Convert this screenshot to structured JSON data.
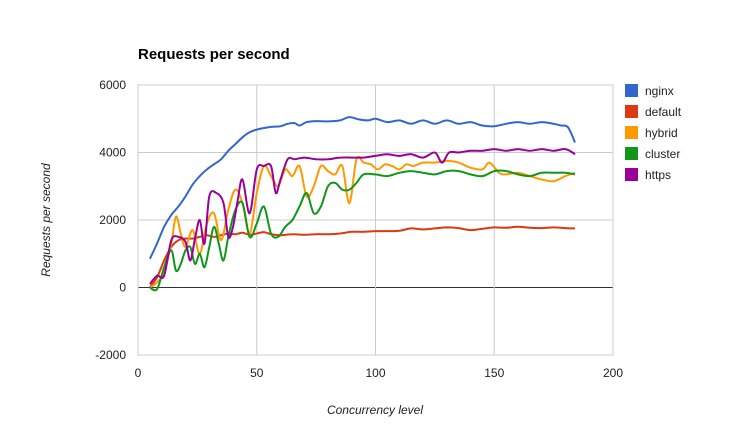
{
  "chart_data": {
    "type": "line",
    "title": "Requests per second",
    "xlabel": "Concurrency level",
    "ylabel": "Requests per second",
    "xlim": [
      0,
      200
    ],
    "ylim": [
      -2000,
      6000
    ],
    "x_ticks": [
      0,
      50,
      100,
      150,
      200
    ],
    "y_ticks": [
      -2000,
      0,
      2000,
      4000,
      6000
    ],
    "grid": true,
    "legend": "right",
    "series": [
      {
        "name": "nginx",
        "color": "#3366cc",
        "points": [
          [
            5,
            850
          ],
          [
            8,
            1300
          ],
          [
            11,
            1800
          ],
          [
            14,
            2150
          ],
          [
            17,
            2400
          ],
          [
            20,
            2700
          ],
          [
            23,
            3050
          ],
          [
            26,
            3300
          ],
          [
            29,
            3500
          ],
          [
            32,
            3650
          ],
          [
            35,
            3800
          ],
          [
            38,
            4050
          ],
          [
            41,
            4250
          ],
          [
            44,
            4450
          ],
          [
            47,
            4600
          ],
          [
            50,
            4680
          ],
          [
            55,
            4750
          ],
          [
            60,
            4780
          ],
          [
            63,
            4850
          ],
          [
            66,
            4870
          ],
          [
            68,
            4800
          ],
          [
            71,
            4900
          ],
          [
            75,
            4930
          ],
          [
            80,
            4920
          ],
          [
            85,
            4950
          ],
          [
            89,
            5050
          ],
          [
            93,
            4980
          ],
          [
            97,
            4950
          ],
          [
            100,
            5000
          ],
          [
            105,
            4900
          ],
          [
            110,
            4950
          ],
          [
            115,
            4850
          ],
          [
            120,
            4950
          ],
          [
            125,
            4850
          ],
          [
            130,
            4950
          ],
          [
            135,
            4850
          ],
          [
            140,
            4900
          ],
          [
            145,
            4800
          ],
          [
            150,
            4780
          ],
          [
            155,
            4850
          ],
          [
            160,
            4900
          ],
          [
            165,
            4850
          ],
          [
            170,
            4900
          ],
          [
            175,
            4850
          ],
          [
            178,
            4800
          ],
          [
            181,
            4750
          ],
          [
            184,
            4300
          ]
        ]
      },
      {
        "name": "default",
        "color": "#dc3912",
        "points": [
          [
            5,
            0
          ],
          [
            8,
            300
          ],
          [
            11,
            800
          ],
          [
            14,
            1200
          ],
          [
            17,
            1400
          ],
          [
            20,
            1450
          ],
          [
            23,
            1450
          ],
          [
            26,
            1500
          ],
          [
            29,
            1550
          ],
          [
            32,
            1500
          ],
          [
            35,
            1550
          ],
          [
            38,
            1600
          ],
          [
            41,
            1580
          ],
          [
            44,
            1620
          ],
          [
            47,
            1560
          ],
          [
            50,
            1600
          ],
          [
            53,
            1640
          ],
          [
            56,
            1580
          ],
          [
            60,
            1550
          ],
          [
            65,
            1580
          ],
          [
            70,
            1560
          ],
          [
            75,
            1580
          ],
          [
            80,
            1580
          ],
          [
            85,
            1600
          ],
          [
            90,
            1650
          ],
          [
            95,
            1650
          ],
          [
            100,
            1670
          ],
          [
            105,
            1670
          ],
          [
            110,
            1680
          ],
          [
            115,
            1750
          ],
          [
            120,
            1720
          ],
          [
            125,
            1750
          ],
          [
            130,
            1780
          ],
          [
            135,
            1760
          ],
          [
            140,
            1700
          ],
          [
            145,
            1740
          ],
          [
            150,
            1780
          ],
          [
            155,
            1770
          ],
          [
            160,
            1800
          ],
          [
            165,
            1770
          ],
          [
            170,
            1760
          ],
          [
            175,
            1780
          ],
          [
            180,
            1760
          ],
          [
            184,
            1750
          ]
        ]
      },
      {
        "name": "hybrid",
        "color": "#ff9900",
        "points": [
          [
            5,
            0
          ],
          [
            8,
            150
          ],
          [
            11,
            450
          ],
          [
            14,
            1300
          ],
          [
            16,
            2100
          ],
          [
            18,
            1600
          ],
          [
            20,
            1200
          ],
          [
            23,
            1700
          ],
          [
            26,
            1000
          ],
          [
            29,
            1900
          ],
          [
            32,
            2200
          ],
          [
            35,
            1400
          ],
          [
            38,
            2300
          ],
          [
            41,
            2900
          ],
          [
            44,
            2500
          ],
          [
            47,
            1600
          ],
          [
            50,
            2800
          ],
          [
            53,
            3600
          ],
          [
            56,
            3300
          ],
          [
            59,
            3000
          ],
          [
            62,
            3500
          ],
          [
            65,
            3300
          ],
          [
            68,
            3600
          ],
          [
            71,
            2700
          ],
          [
            74,
            3000
          ],
          [
            77,
            3600
          ],
          [
            80,
            3450
          ],
          [
            83,
            3350
          ],
          [
            86,
            3600
          ],
          [
            89,
            2500
          ],
          [
            92,
            3800
          ],
          [
            95,
            3700
          ],
          [
            98,
            3650
          ],
          [
            101,
            3500
          ],
          [
            104,
            3650
          ],
          [
            107,
            3600
          ],
          [
            110,
            3500
          ],
          [
            113,
            3650
          ],
          [
            116,
            3600
          ],
          [
            120,
            3700
          ],
          [
            125,
            3700
          ],
          [
            130,
            3750
          ],
          [
            135,
            3700
          ],
          [
            140,
            3550
          ],
          [
            145,
            3500
          ],
          [
            148,
            3700
          ],
          [
            152,
            3400
          ],
          [
            155,
            3350
          ],
          [
            160,
            3400
          ],
          [
            165,
            3300
          ],
          [
            170,
            3200
          ],
          [
            175,
            3150
          ],
          [
            180,
            3300
          ],
          [
            184,
            3400
          ]
        ]
      },
      {
        "name": "cluster",
        "color": "#109618",
        "points": [
          [
            5,
            0
          ],
          [
            8,
            -50
          ],
          [
            11,
            600
          ],
          [
            14,
            1100
          ],
          [
            16,
            500
          ],
          [
            18,
            700
          ],
          [
            20,
            1100
          ],
          [
            22,
            1200
          ],
          [
            24,
            700
          ],
          [
            26,
            1000
          ],
          [
            28,
            600
          ],
          [
            30,
            1200
          ],
          [
            32,
            1800
          ],
          [
            34,
            1300
          ],
          [
            36,
            800
          ],
          [
            38,
            1500
          ],
          [
            41,
            2300
          ],
          [
            44,
            2500
          ],
          [
            47,
            1500
          ],
          [
            50,
            1900
          ],
          [
            53,
            2400
          ],
          [
            56,
            1600
          ],
          [
            59,
            1500
          ],
          [
            62,
            1800
          ],
          [
            65,
            2000
          ],
          [
            68,
            2400
          ],
          [
            71,
            2800
          ],
          [
            74,
            2200
          ],
          [
            77,
            2400
          ],
          [
            80,
            3000
          ],
          [
            83,
            3100
          ],
          [
            86,
            2900
          ],
          [
            89,
            2900
          ],
          [
            92,
            3100
          ],
          [
            95,
            3350
          ],
          [
            100,
            3350
          ],
          [
            105,
            3300
          ],
          [
            110,
            3400
          ],
          [
            115,
            3450
          ],
          [
            120,
            3400
          ],
          [
            125,
            3350
          ],
          [
            130,
            3450
          ],
          [
            135,
            3450
          ],
          [
            140,
            3350
          ],
          [
            145,
            3300
          ],
          [
            150,
            3450
          ],
          [
            155,
            3450
          ],
          [
            160,
            3350
          ],
          [
            165,
            3300
          ],
          [
            170,
            3400
          ],
          [
            175,
            3400
          ],
          [
            180,
            3400
          ],
          [
            184,
            3350
          ]
        ]
      },
      {
        "name": "https",
        "color": "#990099",
        "points": [
          [
            5,
            100
          ],
          [
            8,
            350
          ],
          [
            11,
            350
          ],
          [
            14,
            1400
          ],
          [
            17,
            1500
          ],
          [
            20,
            1350
          ],
          [
            22,
            800
          ],
          [
            24,
            1450
          ],
          [
            26,
            2000
          ],
          [
            28,
            1300
          ],
          [
            30,
            2700
          ],
          [
            33,
            2800
          ],
          [
            36,
            2500
          ],
          [
            38,
            1500
          ],
          [
            40,
            1800
          ],
          [
            42,
            2600
          ],
          [
            44,
            3200
          ],
          [
            47,
            2200
          ],
          [
            50,
            3500
          ],
          [
            53,
            3600
          ],
          [
            56,
            3600
          ],
          [
            58,
            2800
          ],
          [
            60,
            3200
          ],
          [
            63,
            3800
          ],
          [
            66,
            3800
          ],
          [
            70,
            3850
          ],
          [
            75,
            3800
          ],
          [
            80,
            3800
          ],
          [
            85,
            3850
          ],
          [
            90,
            3850
          ],
          [
            95,
            3850
          ],
          [
            100,
            3900
          ],
          [
            105,
            3950
          ],
          [
            110,
            3900
          ],
          [
            115,
            3950
          ],
          [
            120,
            3850
          ],
          [
            125,
            4000
          ],
          [
            128,
            3700
          ],
          [
            131,
            4000
          ],
          [
            135,
            4000
          ],
          [
            140,
            4050
          ],
          [
            145,
            4050
          ],
          [
            150,
            4100
          ],
          [
            155,
            4050
          ],
          [
            160,
            4100
          ],
          [
            165,
            4050
          ],
          [
            170,
            4100
          ],
          [
            175,
            4050
          ],
          [
            180,
            4100
          ],
          [
            184,
            3950
          ]
        ]
      }
    ]
  }
}
